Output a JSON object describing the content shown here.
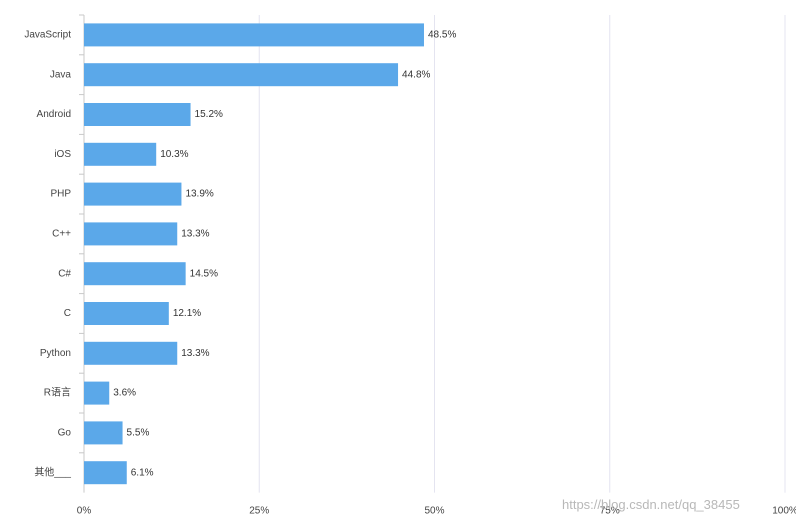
{
  "chart_data": {
    "type": "bar",
    "orientation": "horizontal",
    "categories": [
      "JavaScript",
      "Java",
      "Android",
      "iOS",
      "PHP",
      "C++",
      "C#",
      "C",
      "Python",
      "R语言",
      "Go",
      "其他___"
    ],
    "values": [
      48.5,
      44.8,
      15.2,
      10.3,
      13.9,
      13.3,
      14.5,
      12.1,
      13.3,
      3.6,
      5.5,
      6.1
    ],
    "value_labels": [
      "48.5%",
      "44.8%",
      "15.2%",
      "10.3%",
      "13.9%",
      "13.3%",
      "14.5%",
      "12.1%",
      "13.3%",
      "3.6%",
      "5.5%",
      "6.1%"
    ],
    "xlim": [
      0,
      100
    ],
    "x_ticks": [
      0,
      25,
      50,
      75,
      100
    ],
    "x_tick_labels": [
      "0%",
      "25%",
      "50%",
      "75%",
      "100%"
    ],
    "grid": true,
    "bar_color": "#5ba8e9",
    "grid_color": "#e4e4f0",
    "axis_color": "#c8c8c8"
  },
  "watermark": "https://blog.csdn.net/qq_38455"
}
